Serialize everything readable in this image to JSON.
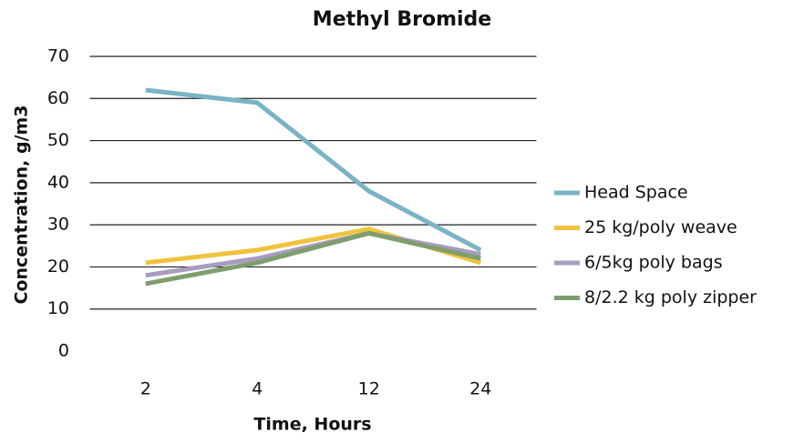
{
  "chart_data": {
    "type": "line",
    "title": "Methyl Bromide",
    "x_label": "Time, Hours",
    "y_label": "Concentration, g/m3",
    "categories": [
      "2",
      "4",
      "12",
      "24"
    ],
    "series": [
      {
        "name": "Head Space",
        "color": "#7ab3c4",
        "values": [
          62,
          59,
          38,
          24
        ]
      },
      {
        "name": "25 kg/poly weave",
        "color": "#f0c33c",
        "values": [
          21,
          24,
          29,
          21
        ]
      },
      {
        "name": "6/5kg poly bags",
        "color": "#a89cc0",
        "values": [
          18,
          22,
          28,
          23
        ]
      },
      {
        "name": "8/2.2 kg poly zipper",
        "color": "#7e9e6e",
        "values": [
          16,
          21,
          28,
          22
        ]
      }
    ],
    "ylim": [
      0,
      70
    ],
    "yticks": [
      0,
      10,
      20,
      30,
      40,
      50,
      60,
      70
    ],
    "grid": true,
    "legend": "right"
  }
}
